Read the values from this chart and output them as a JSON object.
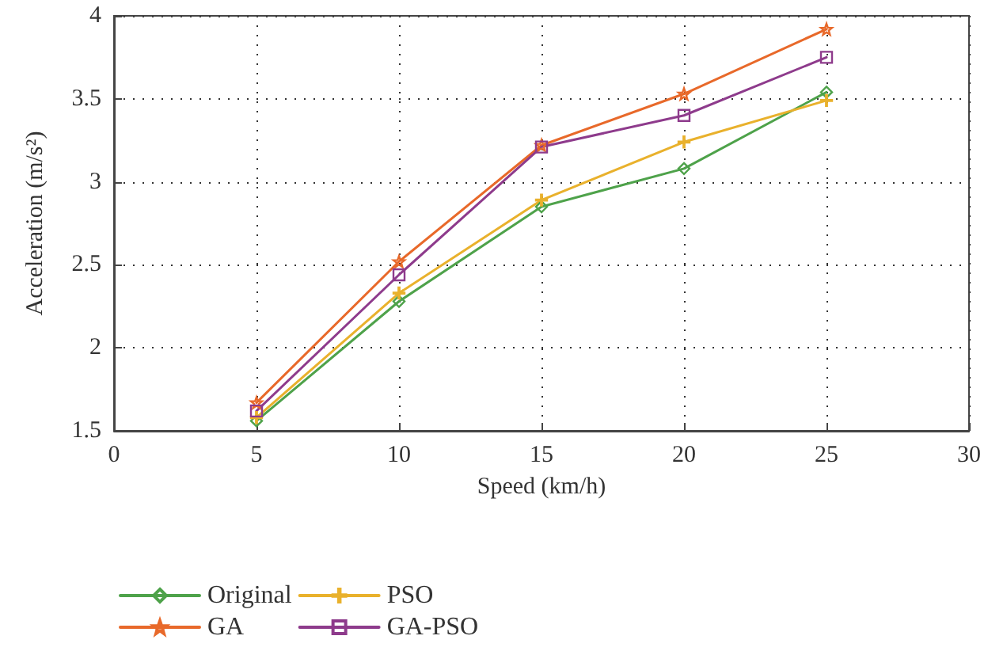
{
  "chart_data": {
    "type": "line",
    "xlabel": "Speed (km/h)",
    "ylabel": "Acceleration (m/s²)",
    "x": [
      5,
      10,
      15,
      20,
      25
    ],
    "xlim": [
      0,
      30
    ],
    "xticks": [
      0,
      5,
      10,
      15,
      20,
      25,
      30
    ],
    "ylim": [
      1.5,
      4
    ],
    "yticks": [
      1.5,
      2,
      2.5,
      3,
      3.5,
      4
    ],
    "grid": true,
    "legend": "bottom",
    "line_style": "solid",
    "series": [
      {
        "name": "Original",
        "color": "#4ea24a",
        "marker": "diamond",
        "values": [
          1.56,
          2.28,
          2.85,
          3.08,
          3.54
        ]
      },
      {
        "name": "GA",
        "color": "#e8692a",
        "marker": "star",
        "values": [
          1.67,
          2.52,
          3.22,
          3.53,
          3.92
        ]
      },
      {
        "name": "PSO",
        "color": "#e9b12c",
        "marker": "cross",
        "values": [
          1.58,
          2.33,
          2.89,
          3.24,
          3.49
        ]
      },
      {
        "name": "GA-PSO",
        "color": "#8e3b8c",
        "marker": "square",
        "values": [
          1.62,
          2.44,
          3.21,
          3.4,
          3.75
        ]
      }
    ]
  }
}
